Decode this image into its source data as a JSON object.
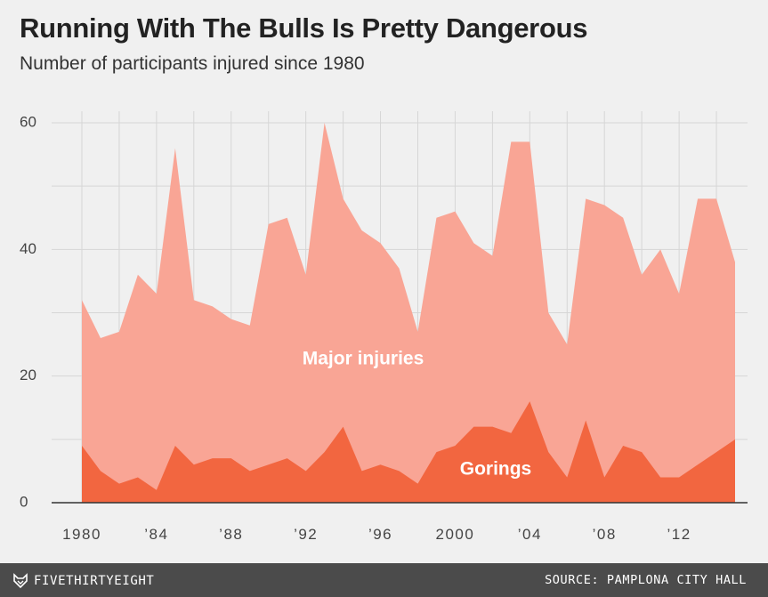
{
  "header": {
    "title": "Running With The Bulls Is Pretty Dangerous",
    "subtitle": "Number of participants injured since 1980"
  },
  "footer": {
    "brand": "FIVETHIRTYEIGHT",
    "source": "SOURCE: PAMPLONA CITY HALL"
  },
  "chart_data": {
    "type": "area",
    "x": [
      1980,
      1981,
      1982,
      1983,
      1984,
      1985,
      1986,
      1987,
      1988,
      1989,
      1990,
      1991,
      1992,
      1993,
      1994,
      1995,
      1996,
      1997,
      1998,
      1999,
      2000,
      2001,
      2002,
      2003,
      2004,
      2005,
      2006,
      2007,
      2008,
      2009,
      2010,
      2011,
      2012,
      2013,
      2014,
      2015
    ],
    "series": [
      {
        "name": "Major injuries",
        "color": "#f9a595",
        "values": [
          32,
          26,
          27,
          36,
          33,
          56,
          32,
          31,
          29,
          28,
          44,
          45,
          36,
          60,
          48,
          43,
          41,
          37,
          27,
          45,
          46,
          41,
          39,
          57,
          57,
          30,
          25,
          48,
          47,
          45,
          36,
          40,
          33,
          48,
          48,
          38
        ]
      },
      {
        "name": "Gorings",
        "color": "#f26640",
        "values": [
          9,
          5,
          3,
          4,
          2,
          9,
          6,
          7,
          7,
          5,
          6,
          7,
          5,
          8,
          12,
          5,
          6,
          5,
          3,
          8,
          9,
          12,
          12,
          11,
          16,
          8,
          4,
          13,
          4,
          9,
          8,
          4,
          4,
          6,
          8,
          10
        ]
      }
    ],
    "xticks": [
      1980,
      1984,
      1988,
      1992,
      1996,
      2000,
      2004,
      2008,
      2012
    ],
    "xtick_labels": [
      "1980",
      "’84",
      "’88",
      "’92",
      "’96",
      "2000",
      "’04",
      "’08",
      "’12"
    ],
    "yticks": [
      0,
      20,
      40,
      60
    ],
    "ylim": [
      0,
      60
    ],
    "xlim": [
      1980,
      2015
    ],
    "grid": true
  }
}
